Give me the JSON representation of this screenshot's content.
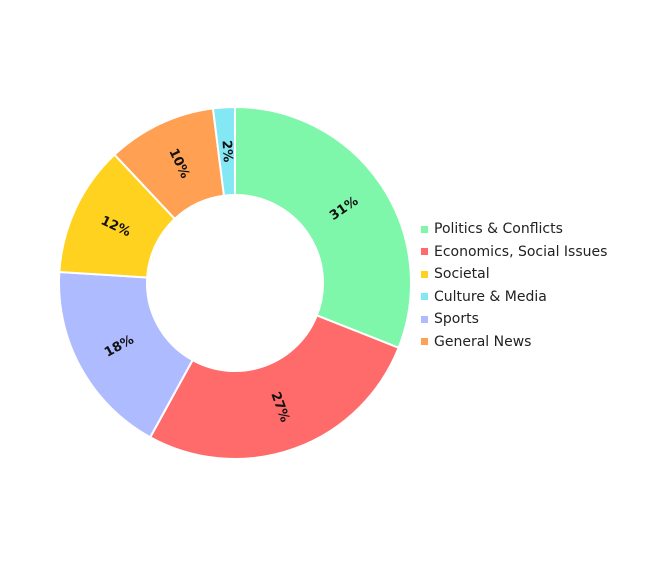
{
  "chart_data": {
    "type": "pie",
    "donut": true,
    "title": "",
    "slices": [
      {
        "label": "Politics & Conflicts",
        "value": 31,
        "text": "31%",
        "color": "#7ef7ab"
      },
      {
        "label": "Economics, Social Issues",
        "value": 27,
        "text": "27%",
        "color": "#ff6b6b"
      },
      {
        "label": "Sports",
        "value": 18,
        "text": "18%",
        "color": "#aebcff"
      },
      {
        "label": "Societal",
        "value": 12,
        "text": "12%",
        "color": "#ffd21f"
      },
      {
        "label": "General News",
        "value": 10,
        "text": "10%",
        "color": "#ffa053"
      },
      {
        "label": "Culture & Media",
        "value": 2,
        "text": "2%",
        "color": "#84e8f4"
      }
    ],
    "legend": {
      "placement": "right",
      "items": [
        {
          "label": "Politics & Conflicts",
          "color": "#7ef7ab"
        },
        {
          "label": "Economics, Social Issues",
          "color": "#ff6b6b"
        },
        {
          "label": "Societal",
          "color": "#ffd21f"
        },
        {
          "label": "Culture & Media",
          "color": "#84e8f4"
        },
        {
          "label": "Sports",
          "color": "#aebcff"
        },
        {
          "label": "General News",
          "color": "#ffa053"
        }
      ]
    }
  }
}
